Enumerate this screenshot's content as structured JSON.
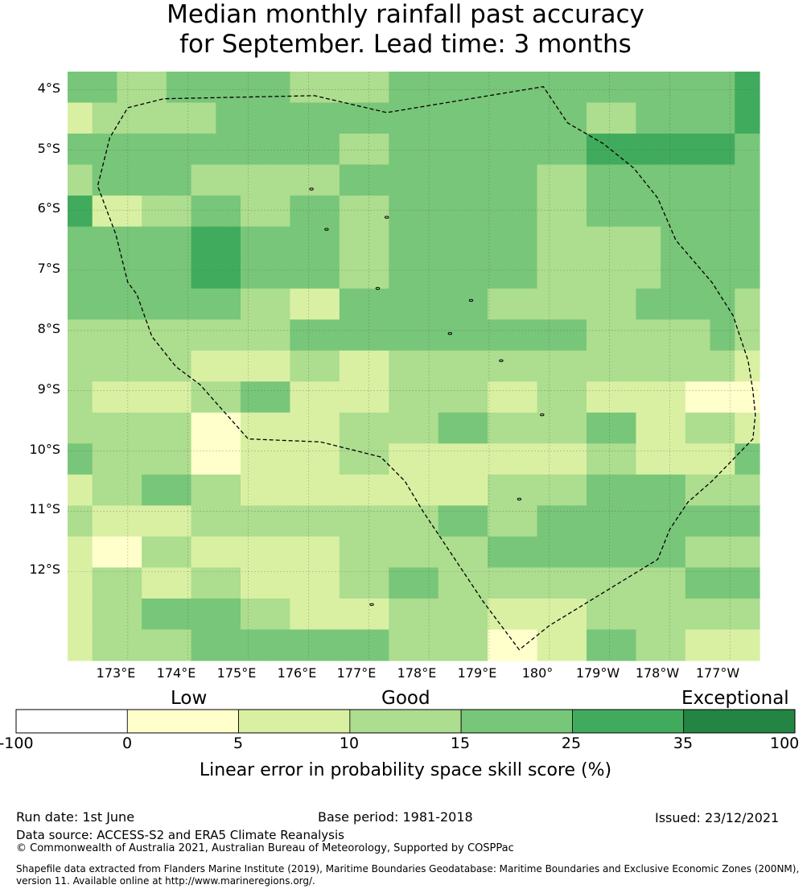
{
  "title_line1": "Median monthly rainfall past accuracy",
  "title_line2": "for September. Lead time: 3 months",
  "map": {
    "lat_labels": [
      "4°S",
      "5°S",
      "6°S",
      "7°S",
      "8°S",
      "9°S",
      "10°S",
      "11°S",
      "12°S"
    ],
    "lon_labels": [
      "173°E",
      "174°E",
      "175°E",
      "176°E",
      "177°E",
      "178°E",
      "179°E",
      "180°",
      "179°W",
      "178°W",
      "177°W"
    ],
    "colors": [
      "#ffffff",
      "#ffffcc",
      "#d9f0a3",
      "#addd8e",
      "#78c679",
      "#41ab5d",
      "#238443"
    ],
    "grid": [
      [
        4,
        4,
        3,
        3,
        4,
        4,
        4,
        4,
        4,
        3,
        3,
        3,
        3,
        4,
        4,
        4,
        4,
        4,
        4,
        4,
        4,
        4,
        4,
        4,
        4,
        4,
        4,
        5
      ],
      [
        2,
        3,
        3,
        3,
        3,
        3,
        4,
        4,
        4,
        4,
        4,
        4,
        4,
        4,
        4,
        4,
        4,
        4,
        4,
        4,
        4,
        3,
        3,
        4,
        4,
        4,
        4,
        5
      ],
      [
        4,
        4,
        4,
        4,
        4,
        4,
        4,
        4,
        4,
        4,
        4,
        3,
        3,
        4,
        4,
        4,
        4,
        4,
        4,
        4,
        4,
        5,
        5,
        5,
        5,
        5,
        5,
        4
      ],
      [
        3,
        4,
        4,
        4,
        4,
        3,
        3,
        3,
        3,
        3,
        3,
        4,
        4,
        4,
        4,
        4,
        4,
        4,
        4,
        3,
        3,
        4,
        4,
        4,
        4,
        4,
        4,
        4
      ],
      [
        5,
        2,
        2,
        3,
        3,
        4,
        4,
        3,
        3,
        4,
        4,
        3,
        3,
        4,
        4,
        4,
        4,
        4,
        4,
        3,
        3,
        4,
        4,
        4,
        4,
        4,
        4,
        4
      ],
      [
        4,
        4,
        4,
        4,
        4,
        5,
        5,
        4,
        4,
        4,
        4,
        3,
        3,
        4,
        4,
        4,
        4,
        4,
        4,
        3,
        3,
        3,
        3,
        3,
        4,
        4,
        4,
        4
      ],
      [
        4,
        4,
        4,
        4,
        4,
        5,
        5,
        4,
        4,
        4,
        4,
        3,
        3,
        4,
        4,
        4,
        4,
        4,
        4,
        3,
        3,
        3,
        3,
        3,
        4,
        4,
        4,
        4
      ],
      [
        4,
        4,
        4,
        4,
        4,
        4,
        4,
        3,
        3,
        2,
        2,
        4,
        4,
        4,
        4,
        4,
        4,
        3,
        3,
        3,
        3,
        3,
        3,
        4,
        4,
        4,
        4,
        3
      ],
      [
        3,
        3,
        3,
        3,
        3,
        3,
        3,
        3,
        3,
        4,
        4,
        4,
        4,
        4,
        4,
        4,
        4,
        4,
        4,
        4,
        4,
        3,
        3,
        3,
        3,
        3,
        4,
        3
      ],
      [
        3,
        3,
        3,
        3,
        3,
        2,
        2,
        2,
        2,
        3,
        3,
        2,
        2,
        3,
        3,
        3,
        3,
        3,
        3,
        3,
        3,
        3,
        3,
        3,
        3,
        3,
        3,
        2
      ],
      [
        3,
        2,
        2,
        2,
        2,
        3,
        3,
        4,
        4,
        2,
        2,
        2,
        2,
        3,
        3,
        3,
        3,
        2,
        2,
        3,
        3,
        2,
        2,
        2,
        2,
        1,
        1,
        1
      ],
      [
        3,
        3,
        3,
        3,
        3,
        1,
        1,
        2,
        2,
        2,
        2,
        3,
        3,
        3,
        3,
        4,
        4,
        3,
        3,
        3,
        3,
        4,
        4,
        2,
        2,
        3,
        3,
        2
      ],
      [
        4,
        3,
        3,
        3,
        3,
        1,
        1,
        2,
        2,
        2,
        2,
        3,
        3,
        2,
        2,
        2,
        2,
        2,
        2,
        2,
        2,
        3,
        3,
        2,
        2,
        2,
        2,
        4
      ],
      [
        2,
        3,
        3,
        4,
        4,
        3,
        3,
        2,
        2,
        2,
        2,
        2,
        2,
        2,
        2,
        2,
        2,
        3,
        3,
        3,
        3,
        4,
        4,
        4,
        4,
        3,
        3,
        3
      ],
      [
        3,
        2,
        2,
        2,
        2,
        3,
        3,
        3,
        3,
        3,
        3,
        3,
        3,
        3,
        3,
        4,
        4,
        3,
        3,
        4,
        4,
        4,
        4,
        4,
        4,
        4,
        4,
        4
      ],
      [
        2,
        1,
        1,
        3,
        3,
        2,
        2,
        2,
        2,
        2,
        2,
        3,
        3,
        3,
        3,
        3,
        3,
        4,
        4,
        4,
        4,
        4,
        4,
        4,
        4,
        3,
        3,
        3
      ],
      [
        2,
        3,
        3,
        2,
        2,
        3,
        3,
        2,
        2,
        2,
        2,
        3,
        3,
        4,
        4,
        3,
        3,
        3,
        3,
        3,
        3,
        3,
        3,
        3,
        3,
        4,
        4,
        4
      ],
      [
        2,
        3,
        3,
        4,
        4,
        4,
        4,
        3,
        3,
        2,
        2,
        2,
        2,
        3,
        3,
        3,
        3,
        2,
        2,
        2,
        2,
        3,
        3,
        3,
        3,
        3,
        3,
        3
      ],
      [
        2,
        3,
        3,
        3,
        3,
        4,
        4,
        4,
        4,
        4,
        4,
        4,
        4,
        3,
        3,
        3,
        3,
        1,
        1,
        2,
        2,
        4,
        4,
        3,
        3,
        2,
        2,
        2
      ]
    ],
    "eez_outline": [
      [
        173.0,
        -4.3
      ],
      [
        173.6,
        -4.15
      ],
      [
        176.1,
        -4.1
      ],
      [
        177.3,
        -4.38
      ],
      [
        179.9,
        -3.95
      ],
      [
        180.3,
        -4.55
      ],
      [
        180.9,
        -4.9
      ],
      [
        181.4,
        -5.3
      ],
      [
        181.8,
        -5.8
      ],
      [
        182.1,
        -6.5
      ],
      [
        182.7,
        -7.2
      ],
      [
        183.05,
        -7.75
      ],
      [
        183.2,
        -8.2
      ],
      [
        183.3,
        -8.5
      ],
      [
        183.38,
        -9.0
      ],
      [
        183.42,
        -9.4
      ],
      [
        183.38,
        -9.8
      ],
      [
        182.7,
        -10.5
      ],
      [
        182.3,
        -10.85
      ],
      [
        182.0,
        -11.3
      ],
      [
        181.8,
        -11.8
      ],
      [
        180.0,
        -12.9
      ],
      [
        179.5,
        -13.3
      ],
      [
        178.9,
        -12.5
      ],
      [
        178.3,
        -11.6
      ],
      [
        177.9,
        -11.0
      ],
      [
        177.6,
        -10.5
      ],
      [
        177.2,
        -10.1
      ],
      [
        176.2,
        -9.85
      ],
      [
        175.0,
        -9.8
      ],
      [
        174.2,
        -8.9
      ],
      [
        173.8,
        -8.6
      ],
      [
        173.4,
        -8.1
      ],
      [
        173.15,
        -7.4
      ],
      [
        173.0,
        -7.2
      ],
      [
        172.8,
        -6.4
      ],
      [
        172.5,
        -5.6
      ],
      [
        172.7,
        -4.8
      ],
      [
        173.0,
        -4.3
      ]
    ],
    "islands": [
      [
        176.05,
        -5.65
      ],
      [
        177.3,
        -6.12
      ],
      [
        176.3,
        -6.32
      ],
      [
        177.15,
        -7.3
      ],
      [
        178.7,
        -7.5
      ],
      [
        178.35,
        -8.05
      ],
      [
        179.2,
        -8.5
      ],
      [
        179.88,
        -9.4
      ],
      [
        179.5,
        -10.8
      ],
      [
        177.05,
        -12.55
      ]
    ]
  },
  "colorbar": {
    "category_labels": [
      "Low",
      "Good",
      "Exceptional"
    ],
    "tick_labels": [
      "-100",
      "0",
      "5",
      "10",
      "15",
      "25",
      "35",
      "100"
    ],
    "label": "Linear error in probability space skill score (%)"
  },
  "footer": {
    "run_date": "Run date: 1st June",
    "base_period": "Base period: 1981-2018",
    "issued": "Issued: 23/12/2021",
    "data_source": "Data source: ACCESS-S2 and ERA5 Climate Reanalysis",
    "copyright": "© Commonwealth of Australia 2021, Australian Bureau of Meteorology, Supported by COSPPac",
    "shapefile_line1": "Shapefile data extracted from Flanders Marine Institute (2019), Maritime Boundaries Geodatabase: Maritime Boundaries and Exclusive Economic Zones (200NM),",
    "shapefile_line2": "version 11. Available online at http://www.marineregions.org/."
  }
}
